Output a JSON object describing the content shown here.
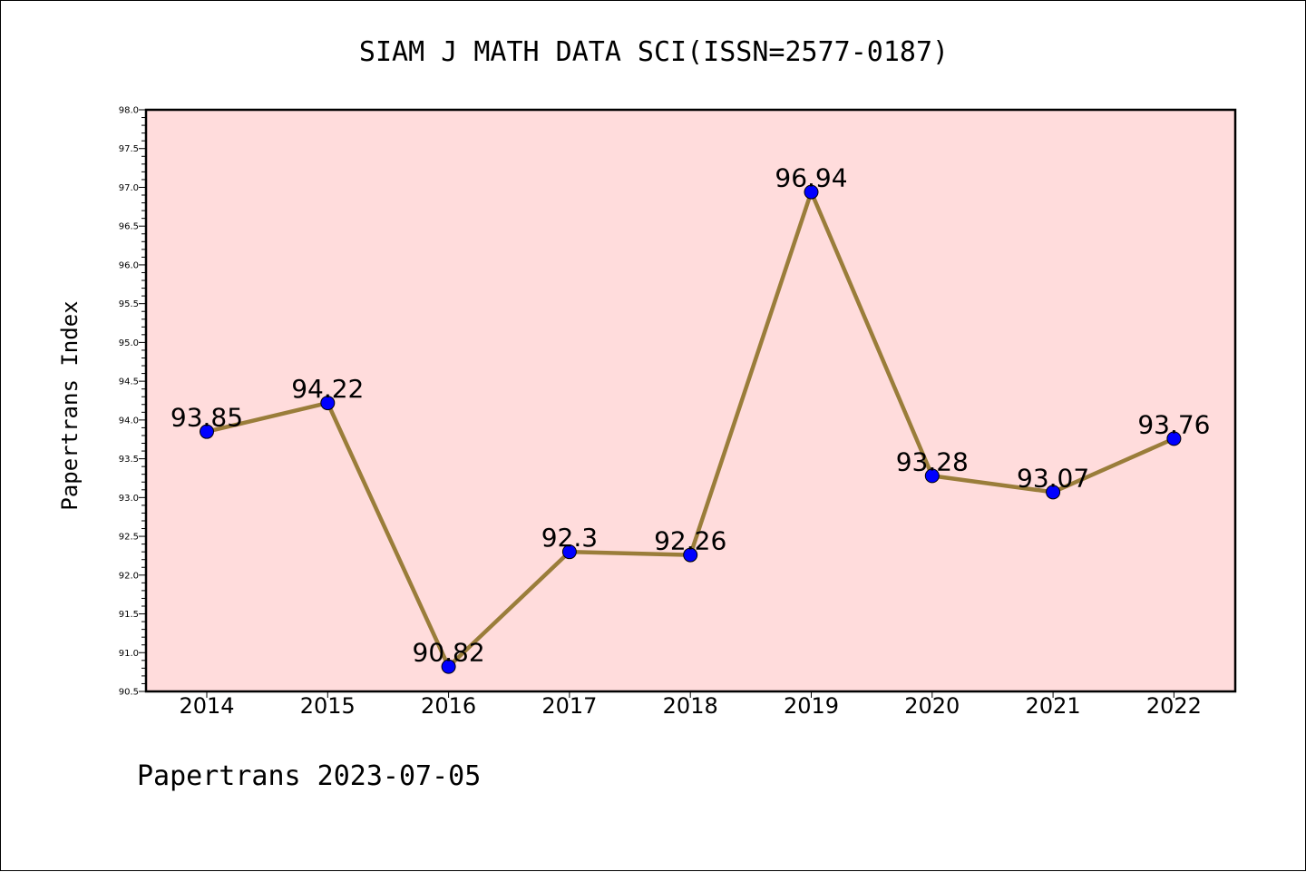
{
  "chart_data": {
    "type": "line",
    "title": "SIAM J MATH DATA SCI(ISSN=2577-0187)",
    "xlabel": "",
    "ylabel": "Papertrans Index",
    "categories": [
      "2014",
      "2015",
      "2016",
      "2017",
      "2018",
      "2019",
      "2020",
      "2021",
      "2022"
    ],
    "series": [
      {
        "values": [
          93.85,
          94.22,
          90.82,
          92.3,
          92.26,
          96.94,
          93.28,
          93.07,
          93.76
        ],
        "labels": [
          "93.85",
          "94.22",
          "90.82",
          "92.3",
          "92.26",
          "96.94",
          "93.28",
          "93.07",
          "93.76"
        ]
      }
    ],
    "ylim": [
      90.5,
      98.0
    ],
    "yticks": [
      "90.5",
      "91.0",
      "91.5",
      "92.0",
      "92.5",
      "93.0",
      "93.5",
      "94.0",
      "94.5",
      "95.0",
      "95.5",
      "96.0",
      "96.5",
      "97.0",
      "97.5",
      "98.0"
    ],
    "grid": false,
    "colors": {
      "plot_background": "#ffdcdc",
      "line": "#9a7d3a",
      "marker": "#0000ff"
    }
  },
  "footer": {
    "text": "Papertrans 2023-07-05"
  }
}
